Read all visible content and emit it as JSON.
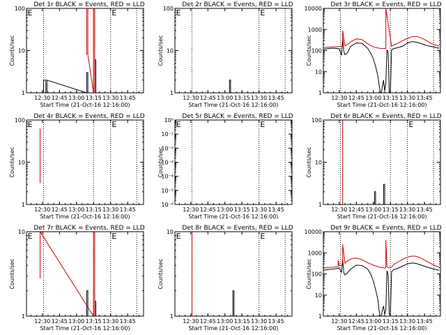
{
  "chart_data": [
    {
      "type": "line",
      "title": "Det 1r BLACK = Events, RED = LLD",
      "xlabel": "Start Time (21-Oct-16 12:16:00)",
      "ylabel": "Counts/sec",
      "xlim": [
        "12:16",
        "13:59"
      ],
      "x_ticks": [
        "12:30",
        "12:45",
        "13:00",
        "13:15",
        "13:30",
        "13:45"
      ],
      "yscale": "log",
      "ylim": [
        1,
        100
      ],
      "y_ticks": [
        "1",
        "10",
        "100"
      ],
      "vlines": [
        "12:31",
        "13:15",
        "13:30",
        "13:53"
      ],
      "marks": [
        {
          "label": "E",
          "x": "12:17"
        },
        {
          "label": "E",
          "x": "13:31"
        }
      ],
      "series": [
        {
          "color": "#000000",
          "x": [
            "12:31",
            "12:31",
            "12:33",
            "12:33",
            "12:34",
            "12:34",
            "13:09",
            "13:09",
            "13:10",
            "13:10",
            "13:16",
            "13:16",
            "13:17",
            "13:17"
          ],
          "y": [
            1,
            2,
            2,
            1,
            1,
            2,
            1,
            3,
            3,
            1,
            1,
            6,
            6,
            1
          ]
        },
        {
          "color": "#cc0000",
          "x": [
            "13:09",
            "13:09",
            "13:10",
            "13:10",
            "13:15",
            "13:15",
            "13:16",
            "13:16"
          ],
          "y": [
            8,
            100,
            100,
            8,
            1,
            100,
            100,
            1
          ]
        }
      ]
    },
    {
      "type": "line",
      "title": "Det 2r BLACK = Events, RED = LLD",
      "xlabel": "Start Time (21-Oct-16 12:16:00)",
      "ylabel": "Counts/sec",
      "xlim": [
        "12:16",
        "13:59"
      ],
      "x_ticks": [
        "12:30",
        "12:45",
        "13:00",
        "13:15",
        "13:30",
        "13:45"
      ],
      "yscale": "log",
      "ylim": [
        1,
        100
      ],
      "y_ticks": [
        "1",
        "10",
        "100"
      ],
      "vlines": [
        "12:31",
        "13:30",
        "13:53"
      ],
      "marks": [
        {
          "label": "E",
          "x": "12:17"
        },
        {
          "label": "E",
          "x": "13:31"
        }
      ],
      "series": [
        {
          "color": "#000000",
          "x": [
            "13:04",
            "13:04",
            "13:05",
            "13:05"
          ],
          "y": [
            1,
            2,
            2,
            1
          ]
        }
      ]
    },
    {
      "type": "line",
      "title": "Det 3r BLACK = Events, RED = LLD",
      "xlabel": "Start Time (21-Oct-16 12:16:00)",
      "ylabel": "Counts/sec",
      "xlim": [
        "12:16",
        "13:59"
      ],
      "x_ticks": [
        "12:30",
        "12:45",
        "13:00",
        "13:15",
        "13:30",
        "13:45"
      ],
      "yscale": "log",
      "ylim": [
        1,
        10000
      ],
      "y_ticks": [
        "1",
        "10",
        "100",
        "1000",
        "10000"
      ],
      "vlines": [
        "12:31",
        "13:15",
        "13:30",
        "13:53"
      ],
      "marks": [],
      "series": [
        {
          "color": "#000000",
          "x": [
            "12:16",
            "12:20",
            "12:25",
            "12:30",
            "12:32",
            "12:33",
            "12:34",
            "12:35",
            "12:36",
            "12:37",
            "12:40",
            "12:45",
            "12:50",
            "12:55",
            "12:58",
            "13:00",
            "13:02",
            "13:04",
            "13:05",
            "13:06",
            "13:07",
            "13:08",
            "13:09",
            "13:10",
            "13:11",
            "13:12",
            "13:13",
            "13:14",
            "13:15",
            "13:16",
            "13:18",
            "13:22",
            "13:26",
            "13:30",
            "13:34",
            "13:38",
            "13:42",
            "13:46",
            "13:50",
            "13:54",
            "13:58"
          ],
          "y": [
            115,
            125,
            130,
            122,
            60,
            400,
            90,
            65,
            70,
            75,
            160,
            230,
            220,
            130,
            70,
            40,
            18,
            6,
            2.5,
            1.1,
            1.05,
            2,
            4,
            1.2,
            3,
            110,
            80,
            1,
            1.1,
            110,
            125,
            140,
            165,
            230,
            270,
            250,
            215,
            180,
            160,
            145,
            130
          ]
        },
        {
          "color": "#cc0000",
          "x": [
            "12:16",
            "12:20",
            "12:25",
            "12:30",
            "12:33",
            "12:33",
            "12:35",
            "12:37",
            "12:40",
            "12:45",
            "12:50",
            "12:55",
            "13:00",
            "13:05",
            "13:10",
            "13:11",
            "13:11",
            "13:16",
            "13:17",
            "13:22",
            "13:26",
            "13:30",
            "13:34",
            "13:38",
            "13:42",
            "13:46",
            "13:50",
            "13:54",
            "13:58"
          ],
          "y": [
            140,
            145,
            150,
            155,
            160,
            900,
            170,
            190,
            260,
            360,
            330,
            210,
            150,
            130,
            125,
            130,
            10000,
            160,
            175,
            230,
            300,
            380,
            450,
            470,
            400,
            310,
            230,
            185,
            165
          ]
        }
      ]
    },
    {
      "type": "line",
      "title": "Det 4r BLACK = Events, RED = LLD",
      "xlabel": "Start Time (21-Oct-16 12:16:00)",
      "ylabel": "Counts/sec",
      "xlim": [
        "12:16",
        "13:59"
      ],
      "x_ticks": [
        "12:30",
        "12:45",
        "13:00",
        "13:15",
        "13:30",
        "13:45"
      ],
      "yscale": "log",
      "ylim": [
        1,
        100
      ],
      "y_ticks": [
        "1",
        "10",
        "100"
      ],
      "vlines": [
        "12:31",
        "13:15",
        "13:30",
        "13:53"
      ],
      "marks": [
        {
          "label": "E",
          "x": "12:17"
        },
        {
          "label": "E",
          "x": "13:31"
        }
      ],
      "series": [
        {
          "color": "#cc0000",
          "x": [
            "12:28",
            "12:28"
          ],
          "y": [
            3.2,
            63
          ]
        }
      ]
    },
    {
      "type": "line",
      "title": "Det 5r BLACK = Events, RED = LLD",
      "xlabel": "Start Time (21-Oct-16 12:16:00)",
      "ylabel": "Counts/sec",
      "xlim": [
        "12:16",
        "13:59"
      ],
      "x_ticks": [
        "12:30",
        "12:45",
        "13:00",
        "13:15",
        "13:30",
        "13:45"
      ],
      "yscale": "log",
      "ylim": [
        1e-06,
        1
      ],
      "y_ticks": [
        "10⁻⁶",
        "10⁻⁵",
        "10⁻⁴",
        "10⁻³",
        "10⁻²",
        "10⁻¹",
        "10⁰"
      ],
      "vlines": [
        "12:31",
        "13:30",
        "13:53"
      ],
      "marks": [
        {
          "label": "E",
          "x": "12:17"
        },
        {
          "label": "E",
          "x": "13:31"
        }
      ],
      "series": []
    },
    {
      "type": "line",
      "title": "Det 6r BLACK = Events, RED = LLD",
      "xlabel": "Start Time (21-Oct-16 12:16:00)",
      "ylabel": "Counts/sec",
      "xlim": [
        "12:16",
        "13:59"
      ],
      "x_ticks": [
        "12:30",
        "12:45",
        "13:00",
        "13:15",
        "13:30",
        "13:45"
      ],
      "yscale": "log",
      "ylim": [
        1,
        100
      ],
      "y_ticks": [
        "1",
        "10",
        "100"
      ],
      "vlines": [
        "12:31",
        "13:15",
        "13:30",
        "13:53"
      ],
      "marks": [
        {
          "label": "E",
          "x": "13:31"
        }
      ],
      "series": [
        {
          "color": "#000000",
          "x": [
            "13:01",
            "13:01",
            "13:02",
            "13:02",
            "13:09",
            "13:09",
            "13:10",
            "13:10"
          ],
          "y": [
            1,
            2,
            2,
            1,
            1,
            3,
            3,
            1
          ]
        },
        {
          "color": "#cc0000",
          "x": [
            "12:33",
            "12:33"
          ],
          "y": [
            1,
            100
          ]
        }
      ]
    },
    {
      "type": "line",
      "title": "Det 7r BLACK = Events, RED = LLD",
      "xlabel": "Start Time (21-Oct-16 12:16:00)",
      "ylabel": "Counts/sec",
      "xlim": [
        "12:16",
        "13:59"
      ],
      "x_ticks": [
        "12:30",
        "12:45",
        "13:00",
        "13:15",
        "13:30",
        "13:45"
      ],
      "yscale": "log",
      "ylim": [
        1,
        10
      ],
      "y_ticks": [
        "1",
        "10"
      ],
      "vlines": [
        "12:31",
        "13:15",
        "13:30",
        "13:53"
      ],
      "marks": [
        {
          "label": "E",
          "x": "12:17"
        },
        {
          "label": "E",
          "x": "13:31"
        }
      ],
      "series": [
        {
          "color": "#000000",
          "x": [
            "13:09",
            "13:09",
            "13:10",
            "13:10",
            "13:16",
            "13:16",
            "13:17",
            "13:17"
          ],
          "y": [
            1,
            2,
            2,
            1,
            1,
            1.5,
            1.5,
            1
          ]
        },
        {
          "color": "#cc0000",
          "x": [
            "12:28",
            "12:28",
            "13:15",
            "13:15",
            "13:16",
            "13:16"
          ],
          "y": [
            2.8,
            10,
            1,
            10,
            10,
            1
          ]
        }
      ]
    },
    {
      "type": "line",
      "title": "Det 8r BLACK = Events, RED = LLD",
      "xlabel": "Start Time (21-Oct-16 12:16:00)",
      "ylabel": "Counts/sec",
      "xlim": [
        "12:16",
        "13:59"
      ],
      "x_ticks": [
        "12:30",
        "12:45",
        "13:00",
        "13:15",
        "13:30",
        "13:45"
      ],
      "yscale": "log",
      "ylim": [
        1,
        10
      ],
      "y_ticks": [
        "1",
        "10"
      ],
      "vlines": [
        "12:31",
        "13:30",
        "13:53"
      ],
      "marks": [
        {
          "label": "E",
          "x": "12:17"
        },
        {
          "label": "E",
          "x": "13:31"
        }
      ],
      "series": [
        {
          "color": "#000000",
          "x": [
            "13:07",
            "13:07",
            "13:08",
            "13:08"
          ],
          "y": [
            1,
            2,
            2,
            1
          ]
        },
        {
          "color": "#cc0000",
          "x": [
            "12:31",
            "12:31"
          ],
          "y": [
            1,
            10
          ]
        }
      ]
    },
    {
      "type": "line",
      "title": "Det 9r BLACK = Events, RED = LLD",
      "xlabel": "Start Time (21-Oct-16 12:16:00)",
      "ylabel": "Counts/sec",
      "xlim": [
        "12:16",
        "13:59"
      ],
      "x_ticks": [
        "12:30",
        "12:45",
        "13:00",
        "13:15",
        "13:30",
        "13:45"
      ],
      "yscale": "log",
      "ylim": [
        1,
        10000
      ],
      "y_ticks": [
        "1",
        "10",
        "100",
        "1000",
        "10000"
      ],
      "vlines": [
        "12:31",
        "13:15",
        "13:30",
        "13:53"
      ],
      "marks": [],
      "series": [
        {
          "color": "#000000",
          "x": [
            "12:16",
            "12:20",
            "12:25",
            "12:30",
            "12:32",
            "12:33",
            "12:34",
            "12:35",
            "12:36",
            "12:37",
            "12:40",
            "12:45",
            "12:50",
            "12:55",
            "12:58",
            "13:00",
            "13:02",
            "13:04",
            "13:05",
            "13:06",
            "13:07",
            "13:08",
            "13:09",
            "13:10",
            "13:11",
            "13:12",
            "13:13",
            "13:14",
            "13:15",
            "13:16",
            "13:18",
            "13:22",
            "13:26",
            "13:30",
            "13:34",
            "13:38",
            "13:42",
            "13:46",
            "13:50",
            "13:54",
            "13:58"
          ],
          "y": [
            150,
            160,
            170,
            190,
            120,
            500,
            110,
            90,
            100,
            110,
            170,
            260,
            250,
            170,
            90,
            45,
            18,
            6,
            2,
            1,
            1,
            2,
            3,
            1.2,
            2,
            140,
            90,
            1.2,
            1.1,
            130,
            160,
            190,
            240,
            300,
            330,
            310,
            260,
            220,
            190,
            165,
            150
          ]
        },
        {
          "color": "#cc0000",
          "x": [
            "12:16",
            "12:20",
            "12:25",
            "12:29",
            "12:29",
            "12:30",
            "12:33",
            "12:33",
            "12:35",
            "12:38",
            "12:42",
            "12:46",
            "12:50",
            "12:55",
            "13:00",
            "13:05",
            "13:10",
            "13:11",
            "13:11",
            "13:12",
            "13:13",
            "13:16",
            "13:18",
            "13:22",
            "13:26",
            "13:30",
            "13:34",
            "13:38",
            "13:42",
            "13:46",
            "13:50",
            "13:54",
            "13:58"
          ],
          "y": [
            190,
            200,
            210,
            220,
            450,
            250,
            260,
            2500,
            320,
            450,
            550,
            560,
            470,
            340,
            260,
            210,
            190,
            200,
            4000,
            220,
            200,
            210,
            280,
            380,
            500,
            620,
            700,
            680,
            560,
            420,
            320,
            250,
            210
          ]
        }
      ]
    }
  ]
}
